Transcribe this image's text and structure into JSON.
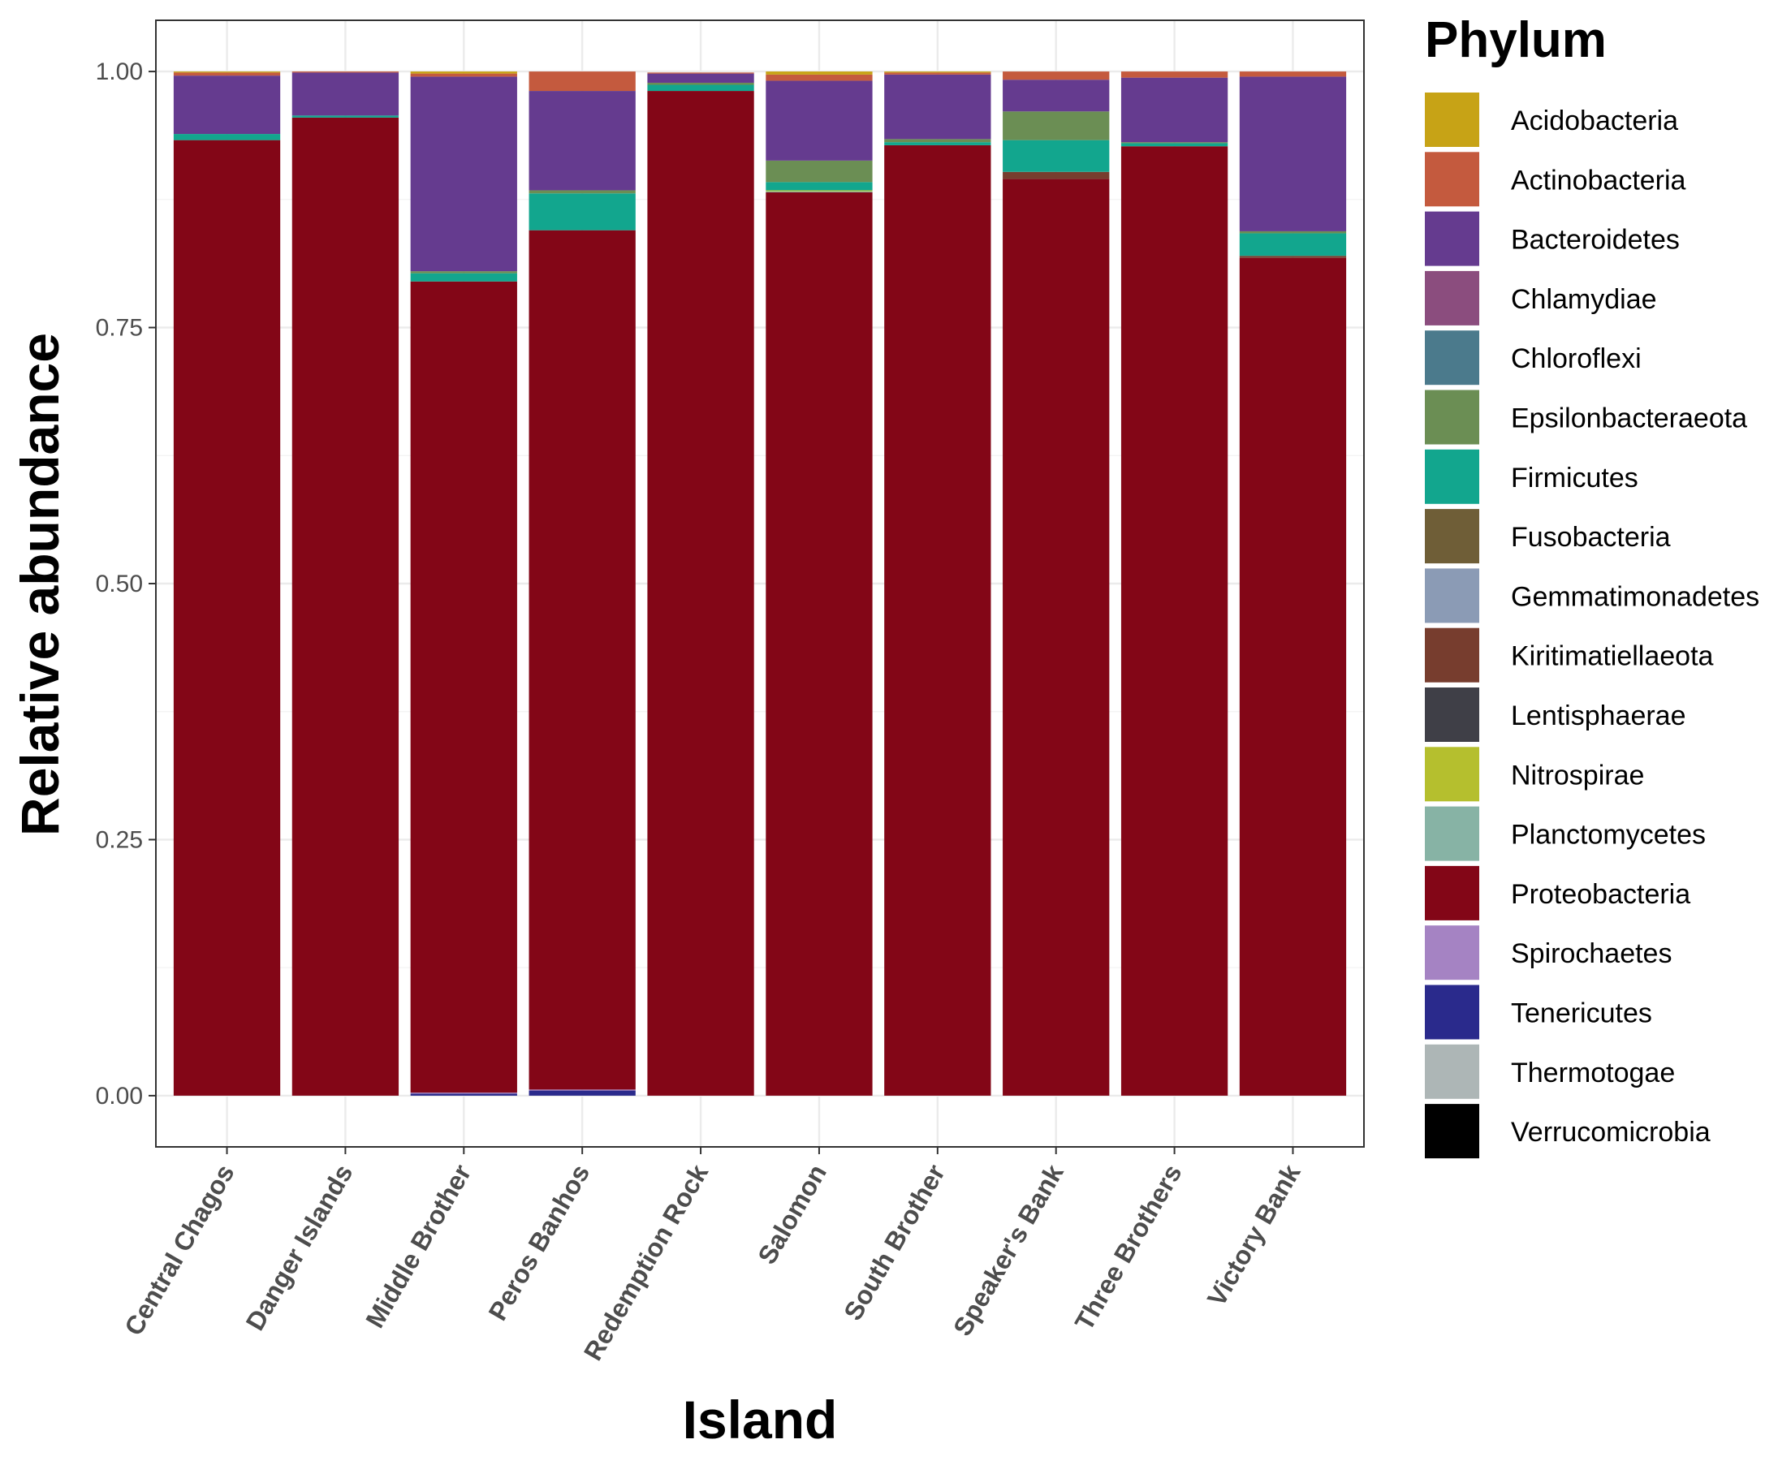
{
  "chart_data": {
    "type": "bar",
    "stacked": true,
    "title": "",
    "xlabel": "Island",
    "ylabel": "Relative abundance",
    "ylim": [
      -0.05,
      1.05
    ],
    "y_ticks": [
      "0.00",
      "0.25",
      "0.50",
      "0.75",
      "1.00"
    ],
    "grid": true,
    "legend_placement": "right",
    "legend_title": "Phylum",
    "categories": [
      "Central Chagos",
      "Danger Islands",
      "Middle Brother",
      "Peros Banhos",
      "Redemption Rock",
      "Salomon",
      "South Brother",
      "Speaker's Bank",
      "Three Brothers",
      "Victory Bank"
    ],
    "series": [
      {
        "name": "Verrucomicrobia",
        "color": "#000000",
        "values": [
          0,
          0,
          0,
          0,
          0,
          0,
          0,
          0,
          0,
          0
        ]
      },
      {
        "name": "Thermotogae",
        "color": "#ADB6B6",
        "values": [
          0,
          0,
          0,
          0,
          0,
          0,
          0,
          0,
          0,
          0
        ]
      },
      {
        "name": "Tenericutes",
        "color": "#2A2A8C",
        "values": [
          0,
          0,
          0.002,
          0.005,
          0,
          0,
          0,
          0,
          0,
          0
        ]
      },
      {
        "name": "Spirochaetes",
        "color": "#A583C3",
        "values": [
          0,
          0,
          0.001,
          0.001,
          0,
          0,
          0,
          0,
          0,
          0
        ]
      },
      {
        "name": "Proteobacteria",
        "color": "#830617",
        "values": [
          0.933,
          0.955,
          0.792,
          0.839,
          0.981,
          0.882,
          0.928,
          0.895,
          0.927,
          0.818
        ]
      },
      {
        "name": "Planctomycetes",
        "color": "#87B3A5",
        "values": [
          0,
          0,
          0,
          0,
          0,
          0.001,
          0,
          0,
          0,
          0
        ]
      },
      {
        "name": "Nitrospirae",
        "color": "#B5BF2E",
        "values": [
          0,
          0,
          0,
          0,
          0,
          0.001,
          0,
          0,
          0,
          0
        ]
      },
      {
        "name": "Lentisphaerae",
        "color": "#3F3F47",
        "values": [
          0,
          0,
          0,
          0,
          0,
          0,
          0,
          0,
          0,
          0
        ]
      },
      {
        "name": "Kiritimatiellaeota",
        "color": "#773D2E",
        "values": [
          0,
          0,
          0,
          0,
          0,
          0,
          0,
          0.007,
          0,
          0.002
        ]
      },
      {
        "name": "Gemmatimonadetes",
        "color": "#8B9BB5",
        "values": [
          0,
          0,
          0,
          0,
          0,
          0,
          0,
          0,
          0,
          0
        ]
      },
      {
        "name": "Fusobacteria",
        "color": "#6F5E37",
        "values": [
          0,
          0,
          0,
          0,
          0,
          0,
          0,
          0,
          0,
          0
        ]
      },
      {
        "name": "Firmicutes",
        "color": "#12A68E",
        "values": [
          0.006,
          0.002,
          0.008,
          0.036,
          0.006,
          0.008,
          0.003,
          0.031,
          0.003,
          0.022
        ]
      },
      {
        "name": "Epsilonbacteraeota",
        "color": "#6B8E54",
        "values": [
          0,
          0,
          0.002,
          0.003,
          0.002,
          0.021,
          0.003,
          0.028,
          0.001,
          0.002
        ]
      },
      {
        "name": "Chloroflexi",
        "color": "#4B7A8C",
        "values": [
          0,
          0,
          0,
          0,
          0,
          0,
          0,
          0,
          0,
          0
        ]
      },
      {
        "name": "Chlamydiae",
        "color": "#8B4D7E",
        "values": [
          0,
          0,
          0,
          0,
          0,
          0,
          0,
          0,
          0,
          0
        ]
      },
      {
        "name": "Bacteroidetes",
        "color": "#653B8F",
        "values": [
          0.057,
          0.042,
          0.19,
          0.097,
          0.009,
          0.078,
          0.063,
          0.031,
          0.063,
          0.151
        ]
      },
      {
        "name": "Actinobacteria",
        "color": "#C45A3E",
        "values": [
          0.003,
          0.001,
          0.003,
          0.019,
          0.001,
          0.006,
          0.002,
          0.008,
          0.006,
          0.005
        ]
      },
      {
        "name": "Acidobacteria",
        "color": "#C7A316",
        "values": [
          0.001,
          0,
          0.002,
          0,
          0,
          0.003,
          0.001,
          0,
          0,
          0
        ]
      }
    ],
    "legend_order": [
      "Acidobacteria",
      "Actinobacteria",
      "Bacteroidetes",
      "Chlamydiae",
      "Chloroflexi",
      "Epsilonbacteraeota",
      "Firmicutes",
      "Fusobacteria",
      "Gemmatimonadetes",
      "Kiritimatiellaeota",
      "Lentisphaerae",
      "Nitrospirae",
      "Planctomycetes",
      "Proteobacteria",
      "Spirochaetes",
      "Tenericutes",
      "Thermotogae",
      "Verrucomicrobia"
    ]
  }
}
